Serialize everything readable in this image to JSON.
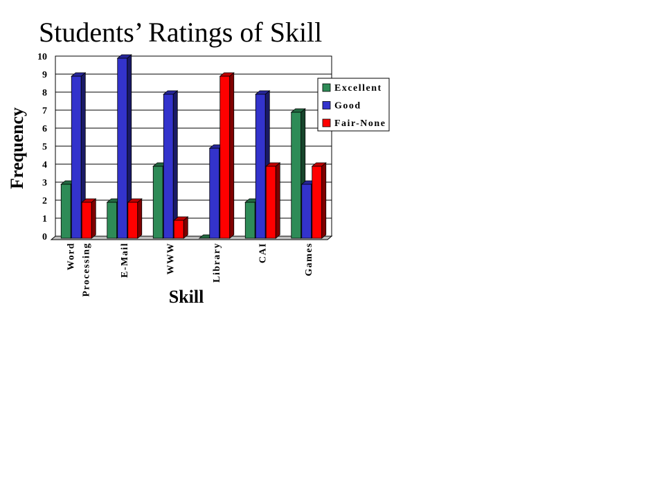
{
  "chart_data": {
    "type": "bar",
    "title": "Students’ Ratings of Skill",
    "xlabel": "Skill",
    "ylabel": "Frequency",
    "ylim": [
      0,
      10
    ],
    "yticks": [
      "0",
      "1",
      "2",
      "3",
      "4",
      "5",
      "6",
      "7",
      "8",
      "9",
      "10"
    ],
    "categories": [
      [
        "Word",
        "Processing"
      ],
      [
        "E-Mail"
      ],
      [
        "WWW"
      ],
      [
        "Library"
      ],
      [
        "CAI"
      ],
      [
        "Games"
      ]
    ],
    "series": [
      {
        "name": "Excellent",
        "color": "#2E8B57",
        "values": [
          3,
          2,
          4,
          0,
          2,
          7
        ]
      },
      {
        "name": "Good",
        "color": "#3333CC",
        "values": [
          9,
          10,
          8,
          5,
          8,
          3
        ]
      },
      {
        "name": "Fair-None",
        "color": "#FF0000",
        "values": [
          2,
          2,
          1,
          9,
          4,
          4
        ]
      }
    ],
    "grid": true,
    "legend": "right",
    "style": "3d-clustered-column"
  }
}
